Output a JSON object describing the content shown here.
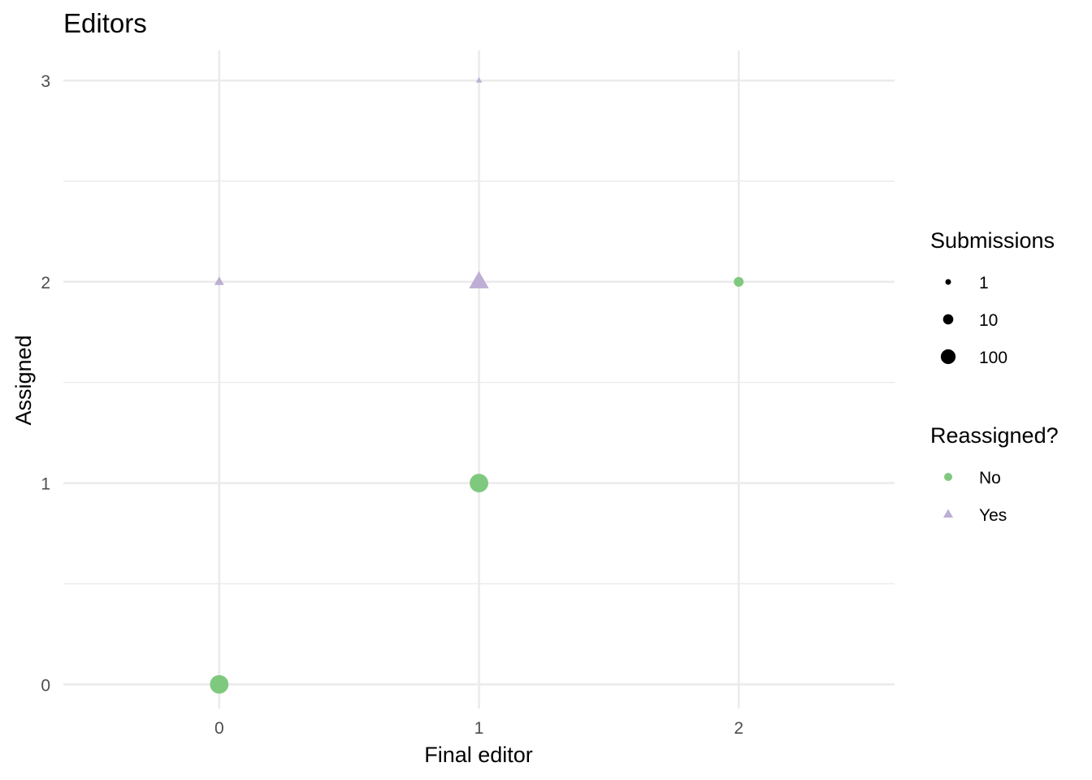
{
  "chart_data": {
    "type": "scatter",
    "title": "Editors",
    "xlabel": "Final editor",
    "ylabel": "Assigned",
    "xlim": [
      -0.6,
      2.6
    ],
    "ylim": [
      -0.12,
      3.15
    ],
    "x_ticks": [
      0,
      1,
      2
    ],
    "y_ticks": [
      0,
      1,
      2,
      3
    ],
    "grid": true,
    "legend_position": "right",
    "colors": {
      "No": "#7fc97f",
      "Yes": "#beaed4",
      "gridline": "#ebebeb"
    },
    "series": [
      {
        "name": "No",
        "shape": "circle",
        "points": [
          {
            "x": 0,
            "y": 0,
            "submissions": 200
          },
          {
            "x": 1,
            "y": 1,
            "submissions": 200
          },
          {
            "x": 2,
            "y": 2,
            "submissions": 8
          }
        ]
      },
      {
        "name": "Yes",
        "shape": "triangle",
        "points": [
          {
            "x": 0,
            "y": 2,
            "submissions": 5
          },
          {
            "x": 1,
            "y": 2,
            "submissions": 150
          },
          {
            "x": 1,
            "y": 3,
            "submissions": 1
          }
        ]
      }
    ],
    "legends": {
      "size": {
        "title": "Submissions",
        "entries": [
          "1",
          "10",
          "100"
        ],
        "values": [
          1,
          10,
          100
        ]
      },
      "color": {
        "title": "Reassigned?",
        "entries": [
          "No",
          "Yes"
        ]
      }
    }
  }
}
